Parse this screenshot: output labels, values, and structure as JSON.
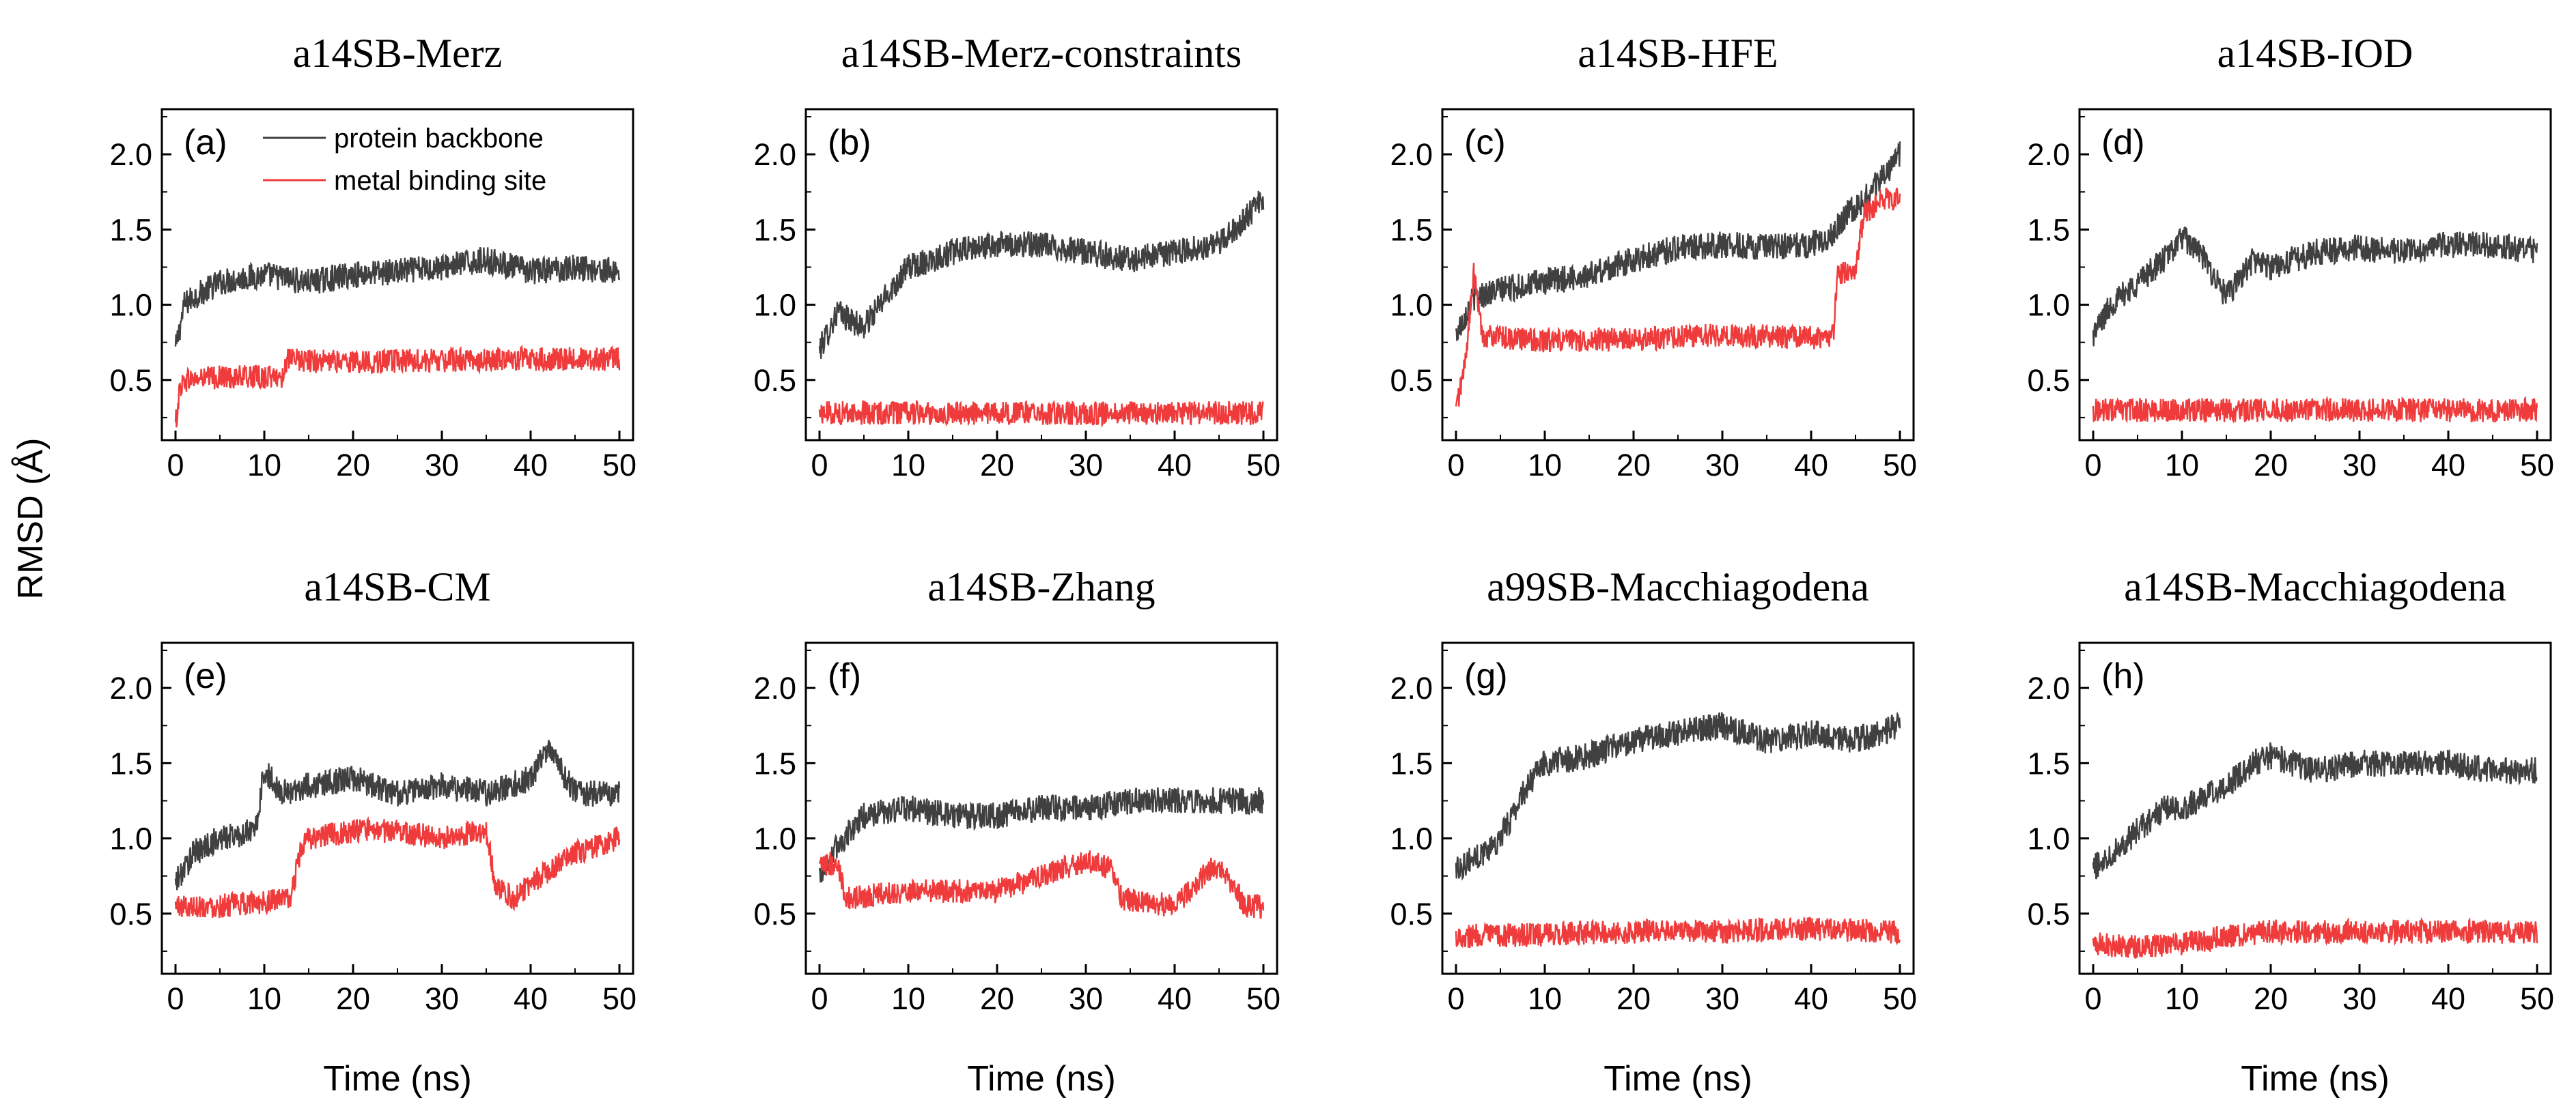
{
  "figure": {
    "ylabel": "RMSD (Å)",
    "xlabel": "Time (ns)",
    "colors": {
      "backbone": "#404040",
      "metal": "#ef3b3b"
    },
    "legend": {
      "backbone_label": "protein backbone",
      "metal_label": "metal binding site",
      "placement": "top-center of panel (a)"
    }
  },
  "chart_data": [
    {
      "type": "line",
      "title": "a14SB-Merz",
      "panel_label": "(a)",
      "xlim": [
        0,
        50
      ],
      "ylim": [
        0.1,
        2.3
      ],
      "xticks": [
        "0",
        "10",
        "20",
        "30",
        "40",
        "50"
      ],
      "yticks": [
        "0.5",
        "1.0",
        "1.5",
        "2.0"
      ],
      "grid": false,
      "series": [
        {
          "name": "protein backbone",
          "color": "#404040",
          "x": [
            0,
            1,
            2,
            5,
            10,
            15,
            20,
            25,
            30,
            35,
            40,
            45,
            50
          ],
          "y": [
            0.7,
            1.0,
            1.05,
            1.15,
            1.2,
            1.15,
            1.2,
            1.22,
            1.25,
            1.3,
            1.22,
            1.25,
            1.22
          ]
        },
        {
          "name": "metal binding site",
          "color": "#ef3b3b",
          "x": [
            0,
            0.5,
            1,
            5,
            12,
            12.5,
            20,
            30,
            40,
            50
          ],
          "y": [
            0.2,
            0.45,
            0.5,
            0.52,
            0.52,
            0.63,
            0.62,
            0.63,
            0.64,
            0.64
          ]
        }
      ]
    },
    {
      "type": "line",
      "title": "a14SB-Merz-constraints",
      "panel_label": "(b)",
      "xlim": [
        0,
        50
      ],
      "ylim": [
        0.1,
        2.3
      ],
      "xticks": [
        "0",
        "10",
        "20",
        "30",
        "40",
        "50"
      ],
      "yticks": [
        "0.5",
        "1.0",
        "1.5",
        "2.0"
      ],
      "grid": false,
      "series": [
        {
          "name": "protein backbone",
          "color": "#404040",
          "x": [
            0,
            2,
            5,
            8,
            10,
            15,
            20,
            25,
            30,
            35,
            40,
            45,
            50
          ],
          "y": [
            0.7,
            0.95,
            0.85,
            1.1,
            1.25,
            1.35,
            1.4,
            1.4,
            1.35,
            1.3,
            1.35,
            1.4,
            1.7
          ]
        },
        {
          "name": "metal binding site",
          "color": "#ef3b3b",
          "x": [
            0,
            10,
            20,
            30,
            40,
            50
          ],
          "y": [
            0.28,
            0.28,
            0.28,
            0.28,
            0.28,
            0.28
          ]
        }
      ]
    },
    {
      "type": "line",
      "title": "a14SB-HFE",
      "panel_label": "(c)",
      "xlim": [
        0,
        50
      ],
      "ylim": [
        0.1,
        2.3
      ],
      "xticks": [
        "0",
        "10",
        "20",
        "30",
        "40",
        "50"
      ],
      "yticks": [
        "0.5",
        "1.0",
        "1.5",
        "2.0"
      ],
      "grid": false,
      "series": [
        {
          "name": "protein backbone",
          "color": "#404040",
          "x": [
            0,
            2,
            5,
            10,
            15,
            20,
            25,
            30,
            35,
            40,
            42,
            44,
            46,
            48,
            50
          ],
          "y": [
            0.8,
            1.05,
            1.1,
            1.15,
            1.2,
            1.3,
            1.38,
            1.4,
            1.38,
            1.4,
            1.45,
            1.6,
            1.7,
            1.85,
            2.0
          ]
        },
        {
          "name": "metal binding site",
          "color": "#ef3b3b",
          "x": [
            0,
            1,
            2,
            3,
            5,
            10,
            20,
            30,
            40,
            42.5,
            43,
            45,
            46,
            48,
            50
          ],
          "y": [
            0.3,
            0.6,
            1.2,
            0.8,
            0.78,
            0.76,
            0.77,
            0.8,
            0.78,
            0.8,
            1.2,
            1.25,
            1.6,
            1.7,
            1.7
          ]
        }
      ]
    },
    {
      "type": "line",
      "title": "a14SB-IOD",
      "panel_label": "(d)",
      "xlim": [
        0,
        50
      ],
      "ylim": [
        0.1,
        2.3
      ],
      "xticks": [
        "0",
        "10",
        "20",
        "30",
        "40",
        "50"
      ],
      "yticks": [
        "0.5",
        "1.0",
        "1.5",
        "2.0"
      ],
      "grid": false,
      "series": [
        {
          "name": "protein backbone",
          "color": "#404040",
          "x": [
            0,
            2,
            5,
            8,
            10,
            12,
            15,
            18,
            20,
            25,
            30,
            35,
            40,
            45,
            50
          ],
          "y": [
            0.8,
            1.0,
            1.15,
            1.3,
            1.45,
            1.35,
            1.05,
            1.3,
            1.25,
            1.35,
            1.38,
            1.35,
            1.4,
            1.4,
            1.35
          ]
        },
        {
          "name": "metal binding site",
          "color": "#ef3b3b",
          "x": [
            0,
            10,
            20,
            30,
            40,
            50
          ],
          "y": [
            0.3,
            0.3,
            0.3,
            0.3,
            0.3,
            0.3
          ]
        }
      ]
    },
    {
      "type": "line",
      "title": "a14SB-CM",
      "panel_label": "(e)",
      "xlim": [
        0,
        50
      ],
      "ylim": [
        0.1,
        2.3
      ],
      "xticks": [
        "0",
        "10",
        "20",
        "30",
        "40",
        "50"
      ],
      "yticks": [
        "0.5",
        "1.0",
        "1.5",
        "2.0"
      ],
      "grid": false,
      "series": [
        {
          "name": "protein backbone",
          "color": "#404040",
          "x": [
            0,
            2,
            5,
            9,
            10,
            12,
            15,
            20,
            25,
            30,
            35,
            40,
            42,
            45,
            50
          ],
          "y": [
            0.7,
            0.9,
            1.0,
            1.05,
            1.45,
            1.3,
            1.35,
            1.4,
            1.3,
            1.35,
            1.3,
            1.4,
            1.6,
            1.3,
            1.3
          ]
        },
        {
          "name": "metal binding site",
          "color": "#ef3b3b",
          "x": [
            0,
            5,
            13,
            14,
            15,
            20,
            25,
            30,
            35,
            36,
            38,
            40,
            45,
            50
          ],
          "y": [
            0.55,
            0.55,
            0.6,
            0.9,
            1.0,
            1.05,
            1.05,
            1.0,
            1.05,
            0.7,
            0.6,
            0.7,
            0.9,
            1.0
          ]
        }
      ]
    },
    {
      "type": "line",
      "title": "a14SB-Zhang",
      "panel_label": "(f)",
      "xlim": [
        0,
        50
      ],
      "ylim": [
        0.1,
        2.3
      ],
      "xticks": [
        "0",
        "10",
        "20",
        "30",
        "40",
        "50"
      ],
      "yticks": [
        "0.5",
        "1.0",
        "1.5",
        "2.0"
      ],
      "grid": false,
      "series": [
        {
          "name": "protein backbone",
          "color": "#404040",
          "x": [
            0,
            2,
            5,
            10,
            15,
            20,
            25,
            30,
            35,
            40,
            45,
            50
          ],
          "y": [
            0.75,
            0.95,
            1.15,
            1.2,
            1.15,
            1.15,
            1.2,
            1.2,
            1.25,
            1.25,
            1.25,
            1.25
          ]
        },
        {
          "name": "metal binding site",
          "color": "#ef3b3b",
          "x": [
            0,
            2,
            3,
            10,
            20,
            25,
            30,
            33,
            34,
            40,
            44,
            45,
            48,
            50
          ],
          "y": [
            0.8,
            0.85,
            0.6,
            0.65,
            0.65,
            0.75,
            0.85,
            0.8,
            0.6,
            0.55,
            0.8,
            0.8,
            0.55,
            0.55
          ]
        }
      ]
    },
    {
      "type": "line",
      "title": "a99SB-Macchiagodena",
      "panel_label": "(g)",
      "xlim": [
        0,
        50
      ],
      "ylim": [
        0.1,
        2.3
      ],
      "xticks": [
        "0",
        "10",
        "20",
        "30",
        "40",
        "50"
      ],
      "yticks": [
        "0.5",
        "1.0",
        "1.5",
        "2.0"
      ],
      "grid": false,
      "series": [
        {
          "name": "protein backbone",
          "color": "#404040",
          "x": [
            0,
            3,
            5,
            8,
            10,
            15,
            20,
            25,
            30,
            35,
            40,
            45,
            50
          ],
          "y": [
            0.8,
            0.9,
            1.0,
            1.35,
            1.5,
            1.55,
            1.65,
            1.7,
            1.75,
            1.65,
            1.7,
            1.65,
            1.75
          ]
        },
        {
          "name": "metal binding site",
          "color": "#ef3b3b",
          "x": [
            0,
            10,
            20,
            30,
            40,
            50
          ],
          "y": [
            0.35,
            0.36,
            0.38,
            0.38,
            0.4,
            0.38
          ]
        }
      ]
    },
    {
      "type": "line",
      "title": "a14SB-Macchiagodena",
      "panel_label": "(h)",
      "xlim": [
        0,
        50
      ],
      "ylim": [
        0.1,
        2.3
      ],
      "xticks": [
        "0",
        "10",
        "20",
        "30",
        "40",
        "50"
      ],
      "yticks": [
        "0.5",
        "1.0",
        "1.5",
        "2.0"
      ],
      "grid": false,
      "series": [
        {
          "name": "protein backbone",
          "color": "#404040",
          "x": [
            0,
            3,
            5,
            8,
            10,
            15,
            18,
            20,
            25,
            30,
            35,
            40,
            45,
            50
          ],
          "y": [
            0.8,
            0.95,
            1.05,
            1.2,
            1.2,
            1.35,
            1.5,
            1.55,
            1.45,
            1.5,
            1.5,
            1.5,
            1.45,
            1.45
          ]
        },
        {
          "name": "metal binding site",
          "color": "#ef3b3b",
          "x": [
            0,
            5,
            10,
            15,
            20,
            30,
            40,
            50
          ],
          "y": [
            0.3,
            0.28,
            0.3,
            0.35,
            0.38,
            0.38,
            0.38,
            0.38
          ]
        }
      ]
    }
  ]
}
